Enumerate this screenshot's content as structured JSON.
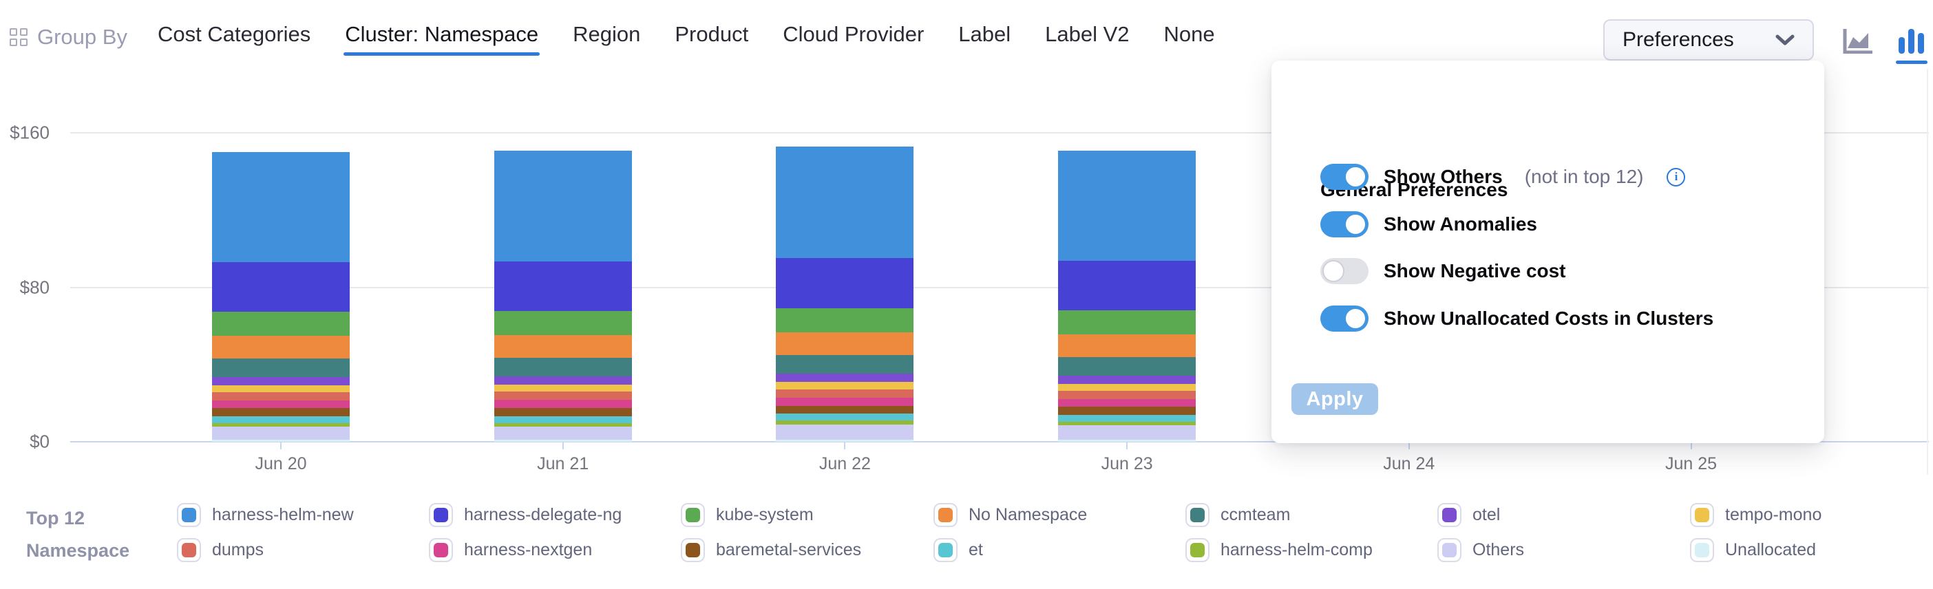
{
  "topbar": {
    "group_by_label": "Group By",
    "tabs": [
      {
        "label": "Cost Categories",
        "active": false
      },
      {
        "label": "Cluster: Namespace",
        "active": true
      },
      {
        "label": "Region",
        "active": false
      },
      {
        "label": "Product",
        "active": false
      },
      {
        "label": "Cloud Provider",
        "active": false
      },
      {
        "label": "Label",
        "active": false
      },
      {
        "label": "Label V2",
        "active": false
      },
      {
        "label": "None",
        "active": false
      }
    ],
    "preferences_label": "Preferences",
    "chart_type_icons": [
      {
        "name": "area-chart-icon",
        "active": false
      },
      {
        "name": "bar-chart-icon",
        "active": true
      }
    ]
  },
  "preferences_panel": {
    "title": "General Preferences",
    "toggles": [
      {
        "label": "Show Others",
        "suffix": "(not in top 12)",
        "has_info_icon": true,
        "state": "on"
      },
      {
        "label": "Show Anomalies",
        "suffix": "",
        "has_info_icon": false,
        "state": "on"
      },
      {
        "label": "Show Negative cost",
        "suffix": "",
        "has_info_icon": false,
        "state": "off"
      },
      {
        "label": "Show Unallocated Costs in Clusters",
        "suffix": "",
        "has_info_icon": false,
        "state": "on"
      }
    ],
    "apply_label": "Apply",
    "apply_enabled": false
  },
  "legend": {
    "title_line1": "Top 12",
    "title_line2": "Namespace"
  },
  "chart_data": {
    "type": "bar",
    "stacked": true,
    "title": "",
    "xlabel": "",
    "ylabel": "",
    "categories": [
      "Jun 20",
      "Jun 21",
      "Jun 22",
      "Jun 23",
      "Jun 24",
      "Jun 25"
    ],
    "y_tick_labels": [
      "$0",
      "$80",
      "$160"
    ],
    "y_tick_values": [
      0,
      80,
      160
    ],
    "ylim": [
      0,
      160
    ],
    "grid": true,
    "legend_position": "bottom",
    "series": [
      {
        "name": "harness-helm-new",
        "color": "#4090DB",
        "values": [
          57.0,
          57.5,
          57.5,
          57.0,
          null,
          null
        ]
      },
      {
        "name": "harness-delegate-ng",
        "color": "#4741D6",
        "values": [
          25.5,
          25.5,
          26.0,
          25.5,
          null,
          null
        ]
      },
      {
        "name": "kube-system",
        "color": "#5BA950",
        "values": [
          12.5,
          12.5,
          12.5,
          12.5,
          null,
          null
        ]
      },
      {
        "name": "No Namespace",
        "color": "#ED8A3E",
        "values": [
          11.7,
          11.7,
          11.8,
          11.7,
          null,
          null
        ]
      },
      {
        "name": "ccmteam",
        "color": "#418080",
        "values": [
          9.8,
          9.8,
          9.8,
          9.8,
          null,
          null
        ]
      },
      {
        "name": "otel",
        "color": "#7C4DD0",
        "values": [
          4.2,
          4.2,
          4.3,
          4.2,
          null,
          null
        ]
      },
      {
        "name": "tempo-mono",
        "color": "#EFC24A",
        "values": [
          3.6,
          3.6,
          3.7,
          3.6,
          null,
          null
        ]
      },
      {
        "name": "dumps",
        "color": "#D9695B",
        "values": [
          4.2,
          4.3,
          4.3,
          4.2,
          null,
          null
        ]
      },
      {
        "name": "harness-nextgen",
        "color": "#D84390",
        "values": [
          4.1,
          4.1,
          4.2,
          4.1,
          null,
          null
        ]
      },
      {
        "name": "baremetal-services",
        "color": "#8C551D",
        "values": [
          4.2,
          4.2,
          4.2,
          4.2,
          null,
          null
        ]
      },
      {
        "name": "et",
        "color": "#57C6D2",
        "values": [
          3.6,
          3.6,
          3.6,
          3.6,
          null,
          null
        ]
      },
      {
        "name": "harness-helm-comp",
        "color": "#93B937",
        "values": [
          1.8,
          1.8,
          1.9,
          1.8,
          null,
          null
        ]
      },
      {
        "name": "Others",
        "color": "#CDCDF4",
        "values": [
          6.7,
          6.9,
          7.9,
          7.5,
          null,
          null
        ]
      },
      {
        "name": "Unallocated",
        "color": "#D7F0F8",
        "values": [
          1.0,
          1.0,
          1.1,
          1.0,
          null,
          null
        ]
      }
    ]
  },
  "colors": {
    "accent_blue": "#2f7ad8",
    "toggle_on": "#3f96e3",
    "apply_disabled": "#a2c5ec",
    "gridline": "#e7e7ec",
    "axis_line": "#c7d6ec"
  }
}
